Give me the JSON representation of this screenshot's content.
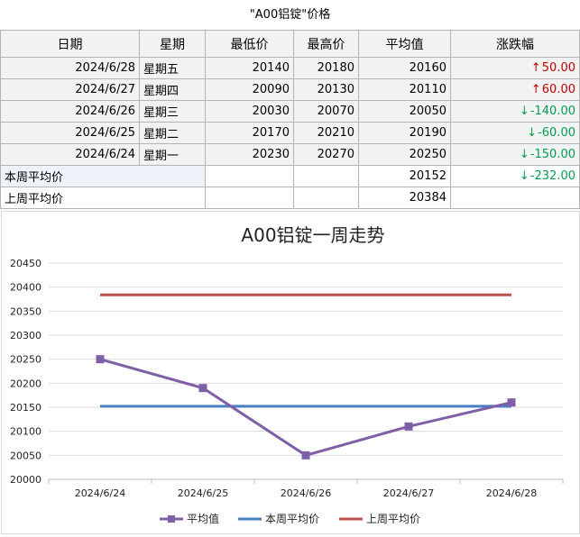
{
  "sheet": {
    "title": "\"A00铝锭\"价格",
    "headers": [
      "日期",
      "星期",
      "最低价",
      "最高价",
      "平均值",
      "涨跌幅"
    ],
    "rows": [
      {
        "date": "2024/6/28",
        "weekday": "星期五",
        "low": "20140",
        "high": "20180",
        "avg": "20160",
        "change": "50.00",
        "direction": "up"
      },
      {
        "date": "2024/6/27",
        "weekday": "星期四",
        "low": "20090",
        "high": "20130",
        "avg": "20110",
        "change": "60.00",
        "direction": "up"
      },
      {
        "date": "2024/6/26",
        "weekday": "星期三",
        "low": "20030",
        "high": "20070",
        "avg": "20050",
        "change": "-140.00",
        "direction": "down"
      },
      {
        "date": "2024/6/25",
        "weekday": "星期二",
        "low": "20170",
        "high": "20210",
        "avg": "20190",
        "change": "-60.00",
        "direction": "down"
      },
      {
        "date": "2024/6/24",
        "weekday": "星期一",
        "low": "20230",
        "high": "20270",
        "avg": "20250",
        "change": "-150.00",
        "direction": "down"
      }
    ],
    "summary": [
      {
        "label": "本周平均价",
        "value": "20152",
        "change": "-232.00",
        "direction": "down"
      },
      {
        "label": "上周平均价",
        "value": "20384",
        "change": "",
        "direction": ""
      }
    ],
    "colors": {
      "up": "#c00000",
      "down": "#00a050"
    }
  },
  "chart_data": {
    "type": "line",
    "title": "A00铝锭一周走势",
    "categories": [
      "2024/6/24",
      "2024/6/25",
      "2024/6/26",
      "2024/6/27",
      "2024/6/28"
    ],
    "series": [
      {
        "name": "平均值",
        "values": [
          20250,
          20190,
          20050,
          20110,
          20160
        ],
        "color": "#7f5fa8",
        "marker": "square"
      },
      {
        "name": "本周平均价",
        "values": [
          20152,
          20152,
          20152,
          20152,
          20152
        ],
        "color": "#4a7fc1",
        "marker": "none"
      },
      {
        "name": "上周平均价",
        "values": [
          20384,
          20384,
          20384,
          20384,
          20384
        ],
        "color": "#c0504d",
        "marker": "none"
      }
    ],
    "ylim": [
      20000,
      20450
    ],
    "yticks": [
      20000,
      20050,
      20100,
      20150,
      20200,
      20250,
      20300,
      20350,
      20400,
      20450
    ],
    "grid": "horizontal",
    "legend": "bottom"
  }
}
